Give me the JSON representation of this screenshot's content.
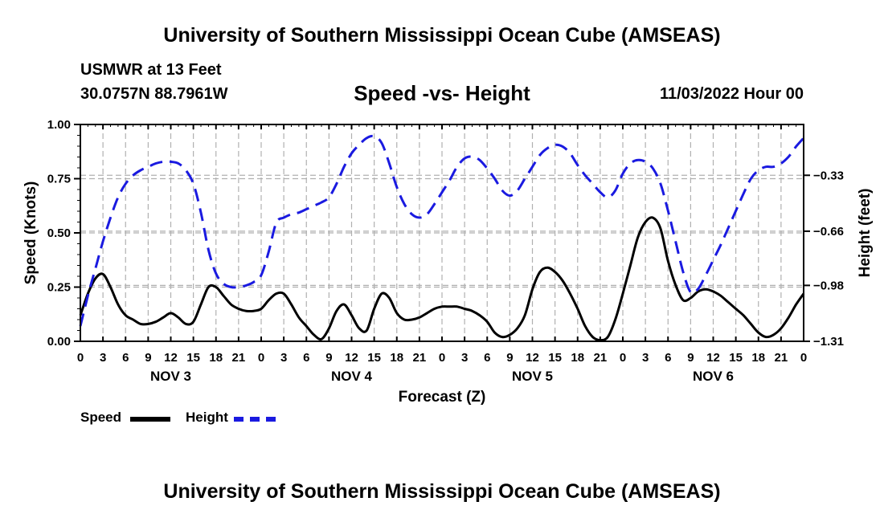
{
  "header": {
    "title": "University of Southern Mississippi Ocean Cube (AMSEAS)",
    "station": "USMWR at 13 Feet",
    "coordinates": "30.0757N  88.7961W",
    "subtitle": "Speed -vs- Height",
    "datetime": "11/03/2022 Hour 00"
  },
  "footer": {
    "title": "University of Southern Mississippi Ocean Cube (AMSEAS)"
  },
  "legend": {
    "speed_label": "Speed",
    "height_label": "Height"
  },
  "colors": {
    "speed": "#000000",
    "height": "#1a1ae0",
    "grid": "#b0b0b0"
  },
  "chart_data": {
    "type": "line",
    "title": "Speed -vs- Height",
    "xlabel": "Forecast (Z)",
    "ylabel": "Speed (Knots)",
    "y2label": "Height (feet)",
    "x_unit": "hours from 11/03/2022 00Z",
    "xlim": [
      0,
      96
    ],
    "ylim": [
      0,
      1
    ],
    "y2lim": [
      -1.31,
      -0.03
    ],
    "x_ticks": [
      0,
      3,
      6,
      9,
      12,
      15,
      18,
      21,
      24,
      27,
      30,
      33,
      36,
      39,
      42,
      45,
      48,
      51,
      54,
      57,
      60,
      63,
      66,
      69,
      72,
      75,
      78,
      81,
      84,
      87,
      90,
      93,
      96
    ],
    "x_tick_labels": [
      "0",
      "3",
      "6",
      "9",
      "12",
      "15",
      "18",
      "21",
      "0",
      "3",
      "6",
      "9",
      "12",
      "15",
      "18",
      "21",
      "0",
      "3",
      "6",
      "9",
      "12",
      "15",
      "18",
      "21",
      "0",
      "3",
      "6",
      "9",
      "12",
      "15",
      "18",
      "21",
      "0"
    ],
    "day_labels": [
      {
        "label": "NOV 3",
        "x": 12
      },
      {
        "label": "NOV 4",
        "x": 36
      },
      {
        "label": "NOV 5",
        "x": 60
      },
      {
        "label": "NOV 6",
        "x": 84
      }
    ],
    "y_ticks": [
      0,
      0.25,
      0.5,
      0.75,
      1.0
    ],
    "y_tick_labels": [
      "0.00",
      "0.25",
      "0.50",
      "0.75",
      "1.00"
    ],
    "y2_ticks": [
      -1.31,
      -0.98,
      -0.66,
      -0.33
    ],
    "y2_tick_labels": [
      "−1.31",
      "−0.98",
      "−0.66",
      "−0.33"
    ],
    "series": [
      {
        "name": "Speed",
        "axis": "left",
        "style": "solid",
        "x": [
          0,
          1,
          2,
          3,
          4,
          5,
          6,
          7,
          8,
          9,
          10,
          11,
          12,
          13,
          14,
          15,
          16,
          17,
          18,
          19,
          20,
          21,
          22,
          23,
          24,
          25,
          26,
          27,
          28,
          29,
          30,
          31,
          32,
          33,
          34,
          35,
          36,
          37,
          38,
          39,
          40,
          41,
          42,
          43,
          44,
          45,
          46,
          47,
          48,
          49,
          50,
          51,
          52,
          53,
          54,
          55,
          56,
          57,
          58,
          59,
          60,
          61,
          62,
          63,
          64,
          65,
          66,
          67,
          68,
          69,
          70,
          71,
          72,
          73,
          74,
          75,
          76,
          77,
          78,
          79,
          80,
          81,
          82,
          83,
          84,
          85,
          86,
          87,
          88,
          89,
          90,
          91,
          92,
          93,
          94,
          95,
          96
        ],
        "values": [
          0.12,
          0.22,
          0.29,
          0.31,
          0.25,
          0.17,
          0.12,
          0.1,
          0.08,
          0.08,
          0.09,
          0.11,
          0.13,
          0.11,
          0.08,
          0.09,
          0.17,
          0.25,
          0.25,
          0.21,
          0.17,
          0.15,
          0.14,
          0.14,
          0.15,
          0.19,
          0.22,
          0.22,
          0.17,
          0.11,
          0.07,
          0.03,
          0.01,
          0.06,
          0.14,
          0.17,
          0.12,
          0.06,
          0.05,
          0.15,
          0.22,
          0.2,
          0.13,
          0.1,
          0.1,
          0.11,
          0.13,
          0.15,
          0.16,
          0.16,
          0.16,
          0.15,
          0.14,
          0.12,
          0.09,
          0.04,
          0.02,
          0.03,
          0.06,
          0.12,
          0.24,
          0.32,
          0.34,
          0.32,
          0.28,
          0.22,
          0.15,
          0.07,
          0.02,
          0.005,
          0.02,
          0.1,
          0.22,
          0.35,
          0.48,
          0.55,
          0.57,
          0.52,
          0.37,
          0.26,
          0.19,
          0.2,
          0.23,
          0.24,
          0.23,
          0.21,
          0.18,
          0.15,
          0.12,
          0.08,
          0.04,
          0.02,
          0.03,
          0.06,
          0.11,
          0.17,
          0.22
        ]
      },
      {
        "name": "Height",
        "axis": "right",
        "style": "dashed",
        "x": [
          0,
          1,
          2,
          3,
          4,
          5,
          6,
          7,
          8,
          9,
          10,
          11,
          12,
          13,
          14,
          15,
          16,
          17,
          18,
          19,
          20,
          21,
          22,
          23,
          24,
          25,
          26,
          27,
          28,
          29,
          30,
          31,
          32,
          33,
          34,
          35,
          36,
          37,
          38,
          39,
          40,
          41,
          42,
          43,
          44,
          45,
          46,
          47,
          48,
          49,
          50,
          51,
          52,
          53,
          54,
          55,
          56,
          57,
          58,
          59,
          60,
          61,
          62,
          63,
          64,
          65,
          66,
          67,
          68,
          69,
          70,
          71,
          72,
          73,
          74,
          75,
          76,
          77,
          78,
          79,
          80,
          81,
          82,
          83,
          84,
          85,
          86,
          87,
          88,
          89,
          90,
          91,
          92,
          93,
          94,
          95,
          96
        ],
        "values": [
          -1.22,
          -1.04,
          -0.88,
          -0.72,
          -0.58,
          -0.46,
          -0.38,
          -0.33,
          -0.3,
          -0.28,
          -0.26,
          -0.25,
          -0.25,
          -0.26,
          -0.3,
          -0.38,
          -0.55,
          -0.77,
          -0.91,
          -0.97,
          -0.99,
          -0.99,
          -0.98,
          -0.96,
          -0.92,
          -0.78,
          -0.61,
          -0.58,
          -0.56,
          -0.55,
          -0.53,
          -0.51,
          -0.49,
          -0.46,
          -0.38,
          -0.28,
          -0.2,
          -0.15,
          -0.11,
          -0.1,
          -0.14,
          -0.26,
          -0.4,
          -0.5,
          -0.56,
          -0.58,
          -0.56,
          -0.5,
          -0.43,
          -0.36,
          -0.28,
          -0.23,
          -0.22,
          -0.24,
          -0.29,
          -0.35,
          -0.42,
          -0.45,
          -0.42,
          -0.35,
          -0.28,
          -0.21,
          -0.17,
          -0.15,
          -0.16,
          -0.2,
          -0.27,
          -0.33,
          -0.38,
          -0.43,
          -0.46,
          -0.42,
          -0.32,
          -0.26,
          -0.24,
          -0.25,
          -0.29,
          -0.38,
          -0.54,
          -0.72,
          -0.9,
          -1.02,
          -1.0,
          -0.92,
          -0.83,
          -0.74,
          -0.64,
          -0.54,
          -0.44,
          -0.35,
          -0.3,
          -0.28,
          -0.28,
          -0.26,
          -0.22,
          -0.16,
          -0.11
        ]
      }
    ]
  }
}
